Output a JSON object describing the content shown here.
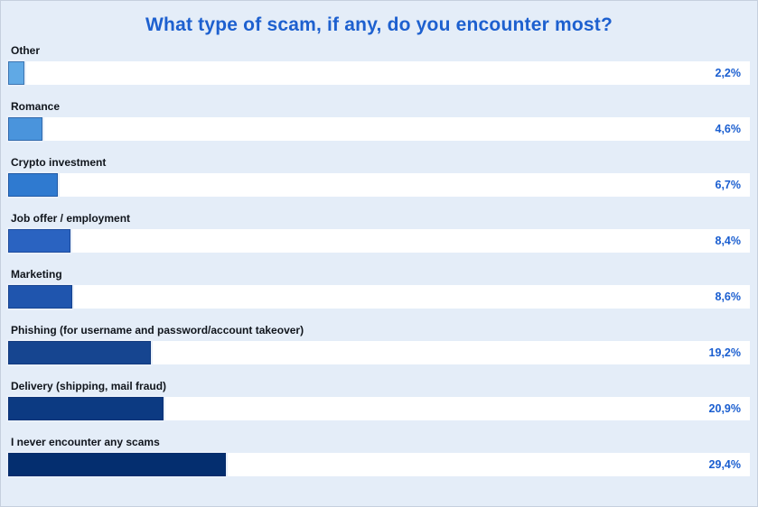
{
  "page": {
    "title": "What type of scam, if any, do you encounter most?"
  },
  "chart_data": {
    "type": "bar",
    "orientation": "horizontal",
    "title": "What type of scam, if any, do you encounter most?",
    "categories": [
      "Other",
      "Romance",
      "Crypto investment",
      "Job offer / employment",
      "Marketing",
      "Phishing (for username and password/account takeover)",
      "Delivery (shipping, mail fraud)",
      "I never encounter any scams"
    ],
    "values": [
      2.2,
      4.6,
      6.7,
      8.4,
      8.6,
      19.2,
      20.9,
      29.4
    ],
    "value_labels": [
      "2,2%",
      "4,6%",
      "6,7%",
      "8,4%",
      "8,6%",
      "19,2%",
      "20,9%",
      "29,4%"
    ],
    "bar_colors": [
      "#60a9e5",
      "#4a94dc",
      "#2f7ad0",
      "#2a63c1",
      "#1f55ae",
      "#164590",
      "#0c3a82",
      "#042e6f"
    ],
    "xlabel": "",
    "ylabel": "",
    "xlim": [
      0,
      100
    ],
    "grid": false,
    "legend": false,
    "value_label_position": "inside-track-right",
    "sort_order": "ascending"
  },
  "colors": {
    "background": "#e4edf8",
    "track": "#ffffff",
    "title_text": "#1d60cf",
    "value_text": "#1a5ed0",
    "label_text": "#10151c",
    "page_border": "#c6d0de"
  }
}
